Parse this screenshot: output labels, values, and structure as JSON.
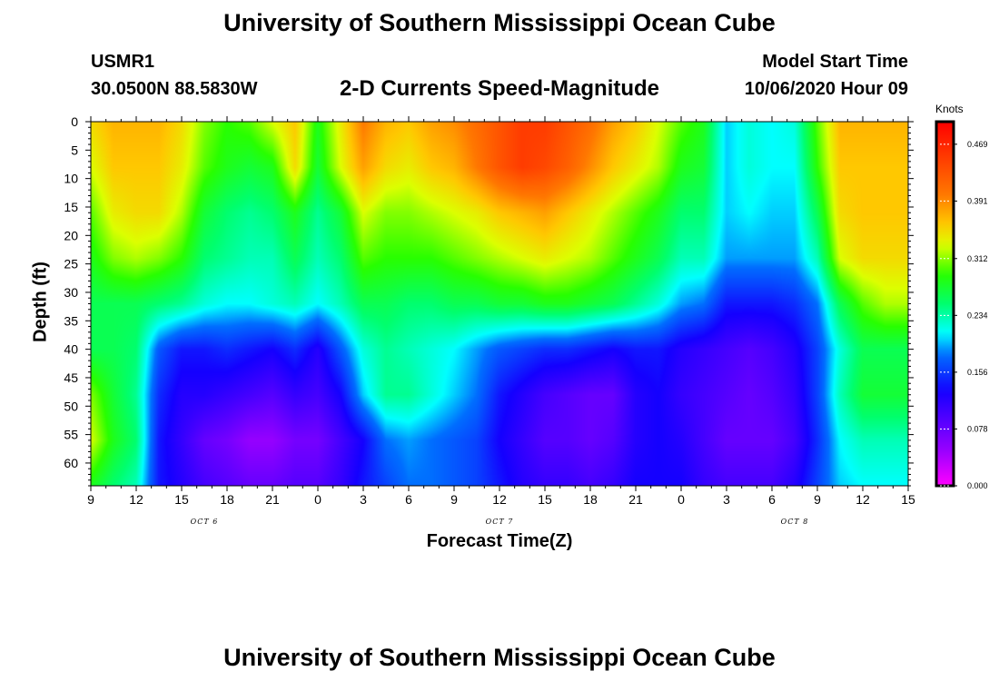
{
  "page_title": "University of Southern Mississippi Ocean Cube",
  "footer_title": "University of Southern Mississippi Ocean Cube",
  "station": {
    "name": "USMR1",
    "coords": "30.0500N 88.5830W"
  },
  "model": {
    "label": "Model Start Time",
    "start": "10/06/2020 Hour 09"
  },
  "colorbar": {
    "units": "Knots",
    "ticks": [
      "0.469",
      "0.391",
      "0.312",
      "0.234",
      "0.156",
      "0.078",
      "0.000"
    ],
    "tick_values": [
      0.469,
      0.391,
      0.312,
      0.234,
      0.156,
      0.078,
      0.0
    ],
    "range": [
      0.0,
      0.5
    ]
  },
  "chart_data": {
    "type": "heatmap",
    "title": "2-D Currents Speed-Magnitude",
    "xlabel": "Forecast Time(Z)",
    "ylabel": "Depth (ft)",
    "x_ticks": [
      "9",
      "12",
      "15",
      "18",
      "21",
      "0",
      "3",
      "6",
      "9",
      "12",
      "15",
      "18",
      "21",
      "0",
      "3",
      "6",
      "9",
      "12",
      "15"
    ],
    "x_tick_hours": [
      0,
      3,
      6,
      9,
      12,
      15,
      18,
      21,
      24,
      27,
      30,
      33,
      36,
      39,
      42,
      45,
      48,
      51,
      54
    ],
    "x_range_hours": [
      0,
      54
    ],
    "day_labels": [
      {
        "label": "OCT 6",
        "hour": 7.5
      },
      {
        "label": "OCT 7",
        "hour": 27
      },
      {
        "label": "OCT 8",
        "hour": 46.5
      }
    ],
    "y_ticks": [
      "0",
      "5",
      "10",
      "15",
      "20",
      "25",
      "30",
      "35",
      "40",
      "45",
      "50",
      "55",
      "60"
    ],
    "y_tick_values": [
      0,
      5,
      10,
      15,
      20,
      25,
      30,
      35,
      40,
      45,
      50,
      55,
      60
    ],
    "y_range": [
      0,
      64
    ],
    "value_range": [
      0.0,
      0.5
    ],
    "grid_hours": [
      0,
      1.5,
      3,
      4.5,
      6,
      7.5,
      9,
      10.5,
      12,
      13.5,
      15,
      16.5,
      18,
      19.5,
      21,
      22.5,
      24,
      25.5,
      27,
      28.5,
      30,
      31.5,
      33,
      34.5,
      36,
      37.5,
      39,
      40.5,
      42,
      43.5,
      45,
      46.5,
      48,
      49.5,
      51,
      52.5,
      54
    ],
    "grid_depths": [
      0,
      8,
      16,
      24,
      32,
      40,
      48,
      56,
      64
    ],
    "speed_knots": [
      [
        0.35,
        0.37,
        0.37,
        0.37,
        0.35,
        0.31,
        0.29,
        0.3,
        0.33,
        0.36,
        0.28,
        0.34,
        0.4,
        0.37,
        0.36,
        0.38,
        0.39,
        0.41,
        0.43,
        0.45,
        0.45,
        0.43,
        0.41,
        0.38,
        0.36,
        0.33,
        0.3,
        0.28,
        0.2,
        0.22,
        0.21,
        0.22,
        0.3,
        0.37,
        0.37,
        0.37,
        0.37
      ],
      [
        0.33,
        0.36,
        0.36,
        0.36,
        0.34,
        0.3,
        0.28,
        0.27,
        0.28,
        0.35,
        0.27,
        0.33,
        0.38,
        0.35,
        0.34,
        0.36,
        0.37,
        0.4,
        0.43,
        0.45,
        0.44,
        0.42,
        0.39,
        0.36,
        0.34,
        0.32,
        0.28,
        0.27,
        0.2,
        0.22,
        0.21,
        0.21,
        0.29,
        0.36,
        0.36,
        0.36,
        0.36
      ],
      [
        0.3,
        0.34,
        0.35,
        0.35,
        0.32,
        0.27,
        0.25,
        0.24,
        0.25,
        0.28,
        0.24,
        0.27,
        0.33,
        0.31,
        0.31,
        0.32,
        0.33,
        0.34,
        0.36,
        0.37,
        0.38,
        0.36,
        0.34,
        0.32,
        0.3,
        0.28,
        0.25,
        0.25,
        0.2,
        0.21,
        0.2,
        0.2,
        0.26,
        0.35,
        0.36,
        0.36,
        0.36
      ],
      [
        0.28,
        0.31,
        0.32,
        0.31,
        0.29,
        0.25,
        0.24,
        0.23,
        0.23,
        0.26,
        0.23,
        0.25,
        0.3,
        0.29,
        0.29,
        0.29,
        0.3,
        0.31,
        0.32,
        0.33,
        0.34,
        0.33,
        0.32,
        0.3,
        0.28,
        0.26,
        0.23,
        0.23,
        0.19,
        0.19,
        0.19,
        0.19,
        0.23,
        0.33,
        0.35,
        0.35,
        0.35
      ],
      [
        0.26,
        0.26,
        0.26,
        0.25,
        0.24,
        0.22,
        0.21,
        0.21,
        0.22,
        0.23,
        0.21,
        0.23,
        0.26,
        0.26,
        0.25,
        0.25,
        0.26,
        0.26,
        0.27,
        0.27,
        0.28,
        0.28,
        0.27,
        0.26,
        0.24,
        0.22,
        0.19,
        0.18,
        0.14,
        0.14,
        0.14,
        0.15,
        0.18,
        0.26,
        0.3,
        0.32,
        0.32
      ],
      [
        0.26,
        0.26,
        0.25,
        0.17,
        0.14,
        0.14,
        0.15,
        0.14,
        0.13,
        0.15,
        0.12,
        0.17,
        0.22,
        0.24,
        0.23,
        0.22,
        0.21,
        0.19,
        0.17,
        0.16,
        0.15,
        0.15,
        0.14,
        0.13,
        0.14,
        0.14,
        0.12,
        0.11,
        0.1,
        0.09,
        0.1,
        0.12,
        0.16,
        0.22,
        0.26,
        0.26,
        0.26
      ],
      [
        0.31,
        0.27,
        0.24,
        0.15,
        0.12,
        0.12,
        0.11,
        0.1,
        0.09,
        0.11,
        0.1,
        0.13,
        0.2,
        0.24,
        0.24,
        0.22,
        0.2,
        0.18,
        0.14,
        0.12,
        0.1,
        0.09,
        0.08,
        0.08,
        0.12,
        0.13,
        0.11,
        0.1,
        0.09,
        0.08,
        0.09,
        0.11,
        0.16,
        0.23,
        0.27,
        0.27,
        0.27
      ],
      [
        0.33,
        0.28,
        0.25,
        0.14,
        0.11,
        0.08,
        0.07,
        0.05,
        0.05,
        0.07,
        0.07,
        0.1,
        0.13,
        0.18,
        0.19,
        0.18,
        0.17,
        0.16,
        0.13,
        0.11,
        0.09,
        0.09,
        0.08,
        0.09,
        0.12,
        0.13,
        0.12,
        0.1,
        0.08,
        0.08,
        0.08,
        0.1,
        0.15,
        0.21,
        0.23,
        0.23,
        0.23
      ],
      [
        0.28,
        0.25,
        0.23,
        0.14,
        0.12,
        0.1,
        0.09,
        0.08,
        0.08,
        0.09,
        0.09,
        0.11,
        0.14,
        0.16,
        0.18,
        0.18,
        0.17,
        0.16,
        0.14,
        0.12,
        0.11,
        0.11,
        0.1,
        0.11,
        0.13,
        0.13,
        0.13,
        0.11,
        0.1,
        0.1,
        0.1,
        0.12,
        0.16,
        0.2,
        0.21,
        0.21,
        0.21
      ]
    ]
  }
}
